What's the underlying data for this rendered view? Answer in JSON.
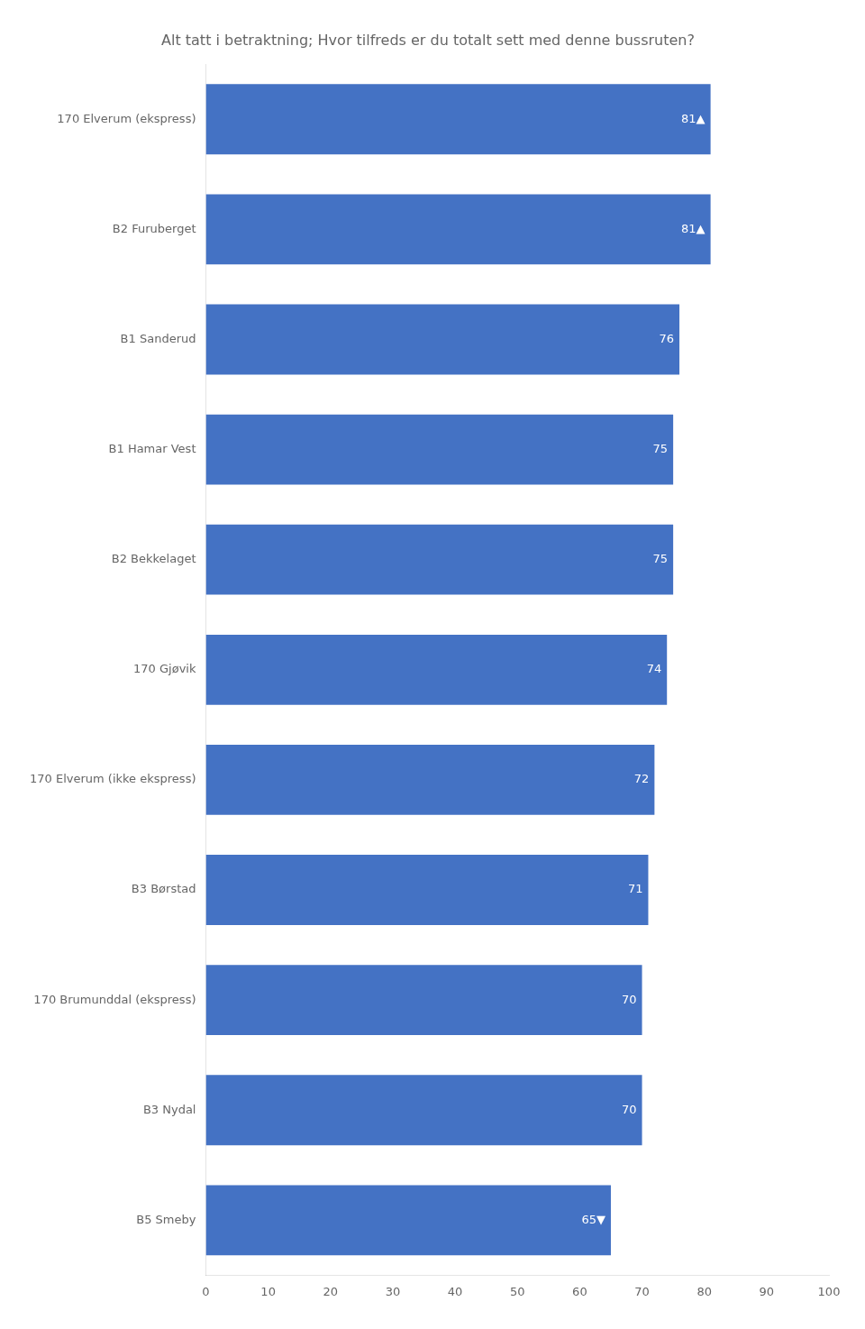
{
  "chart_data": {
    "type": "bar",
    "title": "Alt tatt i betraktning; Hvor tilfreds er du totalt sett med denne bussruten?",
    "orientation": "horizontal",
    "categories": [
      "170 Elverum (ekspress)",
      "B2 Furuberget",
      "B1 Sanderud",
      "B1 Hamar Vest",
      "B2 Bekkelaget",
      "170 Gjøvik",
      "170 Elverum (ikke ekspress)",
      "B3 Børstad",
      "170 Brumunddal (ekspress)",
      "B3 Nydal",
      "B5 Smeby"
    ],
    "values": [
      81,
      81,
      76,
      75,
      75,
      74,
      72,
      71,
      70,
      70,
      65
    ],
    "value_labels": [
      "81▲",
      "81▲",
      "76",
      "75",
      "75",
      "74",
      "72",
      "71",
      "70",
      "70",
      "65▼"
    ],
    "data_labels": true,
    "color": "#4472C4",
    "xlim": [
      0,
      100
    ],
    "xticks": [
      0,
      10,
      20,
      30,
      40,
      50,
      60,
      70,
      80,
      90,
      100
    ],
    "grid": false
  }
}
